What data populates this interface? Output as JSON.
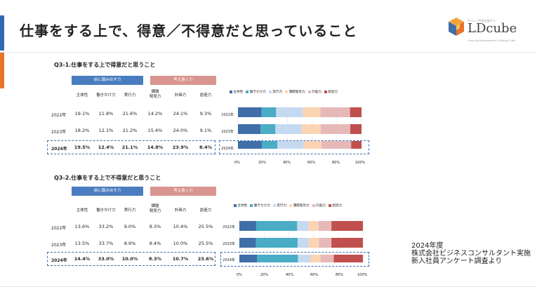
{
  "header": {
    "title": "仕事をする上で、得意／不得意だと思っていること",
    "logo_text": "LDcube",
    "logo_tagline": "サバィブ学習支援サラ",
    "logo_sub": "Learning Development & Design Cube",
    "colors": {
      "accent_blue": "#2f6bb3",
      "accent_orange": "#e8742a"
    }
  },
  "sections": [
    {
      "title": "Q3-1.仕事をする上で得意だと思うこと",
      "category_left": "前に踏み出す力",
      "category_right": "考え抜く力",
      "columns": [
        "主体性",
        "働きかけ力",
        "実行力",
        "課題\n発見力",
        "計画力",
        "創造力"
      ],
      "rows": [
        {
          "year": "2022年",
          "values": [
            "19.1%",
            "11.8%",
            "21.6%",
            "14.2%",
            "24.1%",
            "9.3%"
          ]
        },
        {
          "year": "2023年",
          "values": [
            "18.2%",
            "12.1%",
            "21.2%",
            "15.4%",
            "24.0%",
            "9.1%"
          ]
        },
        {
          "year": "2024年",
          "values": [
            "19.5%",
            "12.4%",
            "21.1%",
            "14.8%",
            "23.9%",
            "8.4%"
          ]
        }
      ]
    },
    {
      "title": "Q3-2.仕事をする上で不得意だと思うこと",
      "category_left": "前に踏み出す力",
      "category_right": "考え抜く力",
      "columns": [
        "主体性",
        "働きかけ力",
        "実行力",
        "課題\n発見力",
        "計画力",
        "創造力"
      ],
      "rows": [
        {
          "year": "2022年",
          "values": [
            "13.6%",
            "33.2%",
            "9.0%",
            "8.3%",
            "10.4%",
            "25.5%"
          ]
        },
        {
          "year": "2023年",
          "values": [
            "13.5%",
            "33.7%",
            "8.9%",
            "8.4%",
            "10.0%",
            "25.5%"
          ]
        },
        {
          "year": "2024年",
          "values": [
            "14.4%",
            "33.0%",
            "10.0%",
            "8.3%",
            "10.7%",
            "23.6%"
          ]
        }
      ]
    }
  ],
  "source": {
    "line1": "2024年度",
    "line2": "株式会社ビジネスコンサルタント実施",
    "line3": "新入社員アンケート調査より"
  },
  "chart_data": [
    {
      "type": "bar",
      "stacked": "percent",
      "orientation": "horizontal",
      "title": "Q3-1.仕事をする上で得意だと思うこと",
      "categories": [
        "2022年",
        "2023年",
        "2024年"
      ],
      "series": [
        {
          "name": "主体性",
          "values": [
            19.1,
            18.2,
            19.5
          ],
          "color": "#3f6ea8"
        },
        {
          "name": "働きかけ力",
          "values": [
            11.8,
            12.1,
            12.4
          ],
          "color": "#4bacc6"
        },
        {
          "name": "実行力",
          "values": [
            21.6,
            21.2,
            21.1
          ],
          "color": "#c5d9f1"
        },
        {
          "name": "課題発見力",
          "values": [
            14.2,
            15.4,
            14.8
          ],
          "color": "#fbd4b4"
        },
        {
          "name": "計画力",
          "values": [
            24.1,
            24.0,
            23.9
          ],
          "color": "#e6b9b8"
        },
        {
          "name": "創造力",
          "values": [
            9.3,
            9.1,
            8.4
          ],
          "color": "#c0504d"
        }
      ],
      "xticks": [
        "0%",
        "20%",
        "40%",
        "60%",
        "80%",
        "100%"
      ],
      "xlim": [
        0,
        100
      ]
    },
    {
      "type": "bar",
      "stacked": "percent",
      "orientation": "horizontal",
      "title": "Q3-2.仕事をする上で不得意だと思うこと",
      "categories": [
        "2022年",
        "2023年",
        "2024年"
      ],
      "series": [
        {
          "name": "主体性",
          "values": [
            13.6,
            13.5,
            14.4
          ],
          "color": "#3f6ea8"
        },
        {
          "name": "働きかけ力",
          "values": [
            33.2,
            33.7,
            33.0
          ],
          "color": "#4bacc6"
        },
        {
          "name": "実行力",
          "values": [
            9.0,
            8.9,
            10.0
          ],
          "color": "#c5d9f1"
        },
        {
          "name": "課題発見力",
          "values": [
            8.3,
            8.4,
            8.3
          ],
          "color": "#fbd4b4"
        },
        {
          "name": "計画力",
          "values": [
            10.4,
            10.0,
            10.7
          ],
          "color": "#e6b9b8"
        },
        {
          "name": "創造力",
          "values": [
            25.5,
            25.5,
            23.6
          ],
          "color": "#c0504d"
        }
      ],
      "xticks": [
        "0%",
        "20%",
        "40%",
        "60%",
        "80%",
        "100%"
      ],
      "xlim": [
        0,
        100
      ]
    }
  ]
}
